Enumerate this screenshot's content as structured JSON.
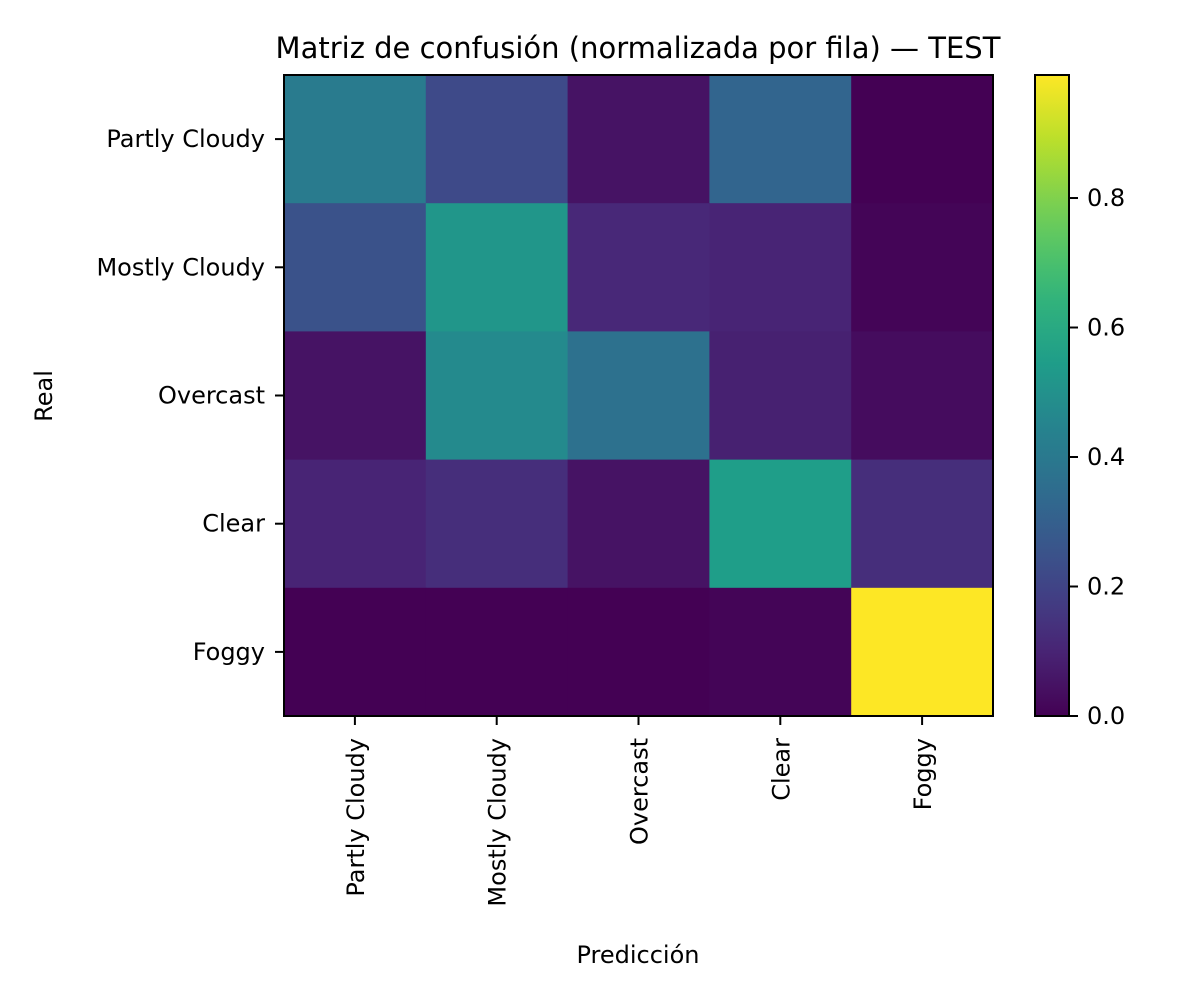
{
  "chart_data": {
    "type": "heatmap",
    "title": "Matriz de confusión (normalizada por fila) — TEST",
    "xlabel": "Predicción",
    "ylabel": "Real",
    "x_categories": [
      "Partly Cloudy",
      "Mostly Cloudy",
      "Overcast",
      "Clear",
      "Foggy"
    ],
    "y_categories": [
      "Partly Cloudy",
      "Mostly Cloudy",
      "Overcast",
      "Clear",
      "Foggy"
    ],
    "values": [
      [
        0.41,
        0.22,
        0.05,
        0.32,
        0.0
      ],
      [
        0.25,
        0.52,
        0.11,
        0.1,
        0.01
      ],
      [
        0.05,
        0.47,
        0.37,
        0.09,
        0.03
      ],
      [
        0.1,
        0.13,
        0.05,
        0.55,
        0.13
      ],
      [
        0.0,
        0.0,
        0.0,
        0.01,
        0.99
      ]
    ],
    "colormap": "viridis",
    "colorbar": {
      "range": [
        0,
        0.99
      ],
      "ticks": [
        0.0,
        0.2,
        0.4,
        0.6,
        0.8
      ],
      "tick_labels": [
        "0.0",
        "0.2",
        "0.4",
        "0.6",
        "0.8"
      ]
    }
  }
}
